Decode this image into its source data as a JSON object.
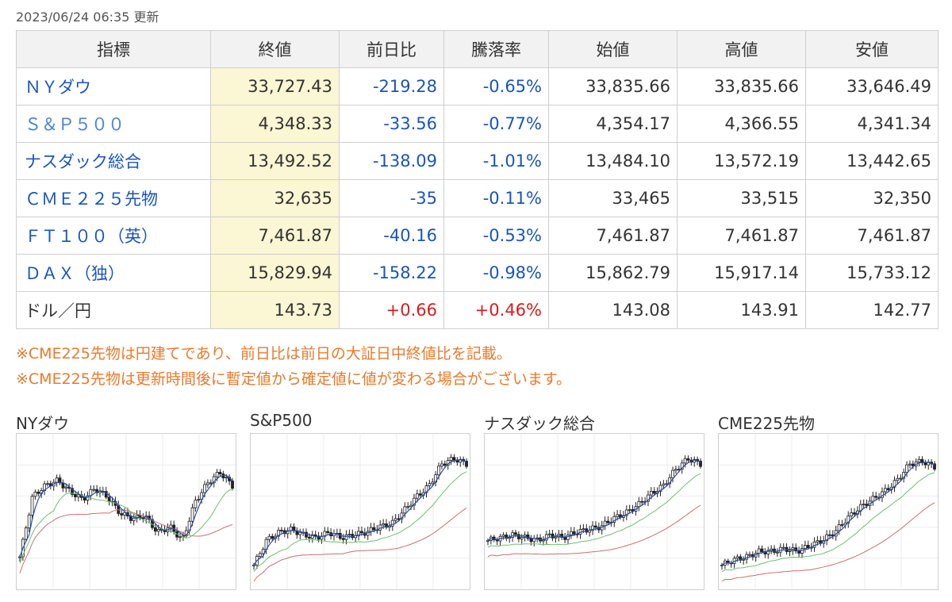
{
  "updated_text": "2023/06/24 06:35 更新",
  "table": {
    "headers": [
      "指標",
      "終値",
      "前日比",
      "騰落率",
      "始値",
      "高値",
      "安値"
    ],
    "rows": [
      {
        "name": "ＮＹダウ",
        "close": "33,727.43",
        "change": "-219.28",
        "rate": "-0.65%",
        "open": "33,835.66",
        "high": "33,835.66",
        "low": "33,646.49",
        "direction": "down",
        "link": true
      },
      {
        "name": "Ｓ＆Ｐ５００",
        "close": "4,348.33",
        "change": "-33.56",
        "rate": "-0.77%",
        "open": "4,354.17",
        "high": "4,366.55",
        "low": "4,341.34",
        "direction": "down",
        "link": true
      },
      {
        "name": "ナスダック総合",
        "close": "13,492.52",
        "change": "-138.09",
        "rate": "-1.01%",
        "open": "13,484.10",
        "high": "13,572.19",
        "low": "13,442.65",
        "direction": "down",
        "link": true
      },
      {
        "name": "ＣＭＥ２２５先物",
        "close": "32,635",
        "change": "-35",
        "rate": "-0.11%",
        "open": "33,465",
        "high": "33,515",
        "low": "32,350",
        "direction": "down",
        "link": true
      },
      {
        "name": "ＦＴ１００（英）",
        "close": "7,461.87",
        "change": "-40.16",
        "rate": "-0.53%",
        "open": "7,461.87",
        "high": "7,461.87",
        "low": "7,461.87",
        "direction": "down",
        "link": true
      },
      {
        "name": "ＤＡＸ（独）",
        "close": "15,829.94",
        "change": "-158.22",
        "rate": "-0.98%",
        "open": "15,862.79",
        "high": "15,917.14",
        "low": "15,733.12",
        "direction": "down",
        "link": true
      },
      {
        "name": "ドル／円",
        "close": "143.73",
        "change": "+0.66",
        "rate": "+0.46%",
        "open": "143.08",
        "high": "143.91",
        "low": "142.77",
        "direction": "up",
        "link": false
      }
    ]
  },
  "notes": [
    "※CME225先物は円建てであり、前日比は前日の大証日中終値比を記載。",
    "※CME225先物は更新時間後に暫定値から確定値に値が変わる場合がございます。"
  ],
  "charts": [
    {
      "title": "NYダウ",
      "trend": [
        0.18,
        0.62,
        0.7,
        0.74,
        0.66,
        0.6,
        0.68,
        0.62,
        0.5,
        0.46,
        0.48,
        0.36,
        0.4,
        0.3,
        0.58,
        0.72,
        0.8,
        0.7
      ]
    },
    {
      "title": "S&P500",
      "trend": [
        0.12,
        0.3,
        0.36,
        0.38,
        0.34,
        0.32,
        0.36,
        0.32,
        0.34,
        0.36,
        0.4,
        0.42,
        0.52,
        0.62,
        0.7,
        0.86,
        0.9,
        0.86
      ]
    },
    {
      "title": "ナスダック総合",
      "trend": [
        0.3,
        0.32,
        0.34,
        0.32,
        0.3,
        0.34,
        0.32,
        0.36,
        0.38,
        0.4,
        0.46,
        0.5,
        0.56,
        0.64,
        0.7,
        0.82,
        0.9,
        0.86
      ]
    },
    {
      "title": "CME225先物",
      "trend": [
        0.12,
        0.16,
        0.18,
        0.22,
        0.22,
        0.24,
        0.22,
        0.26,
        0.3,
        0.36,
        0.46,
        0.54,
        0.6,
        0.66,
        0.74,
        0.86,
        0.88,
        0.84
      ]
    }
  ]
}
